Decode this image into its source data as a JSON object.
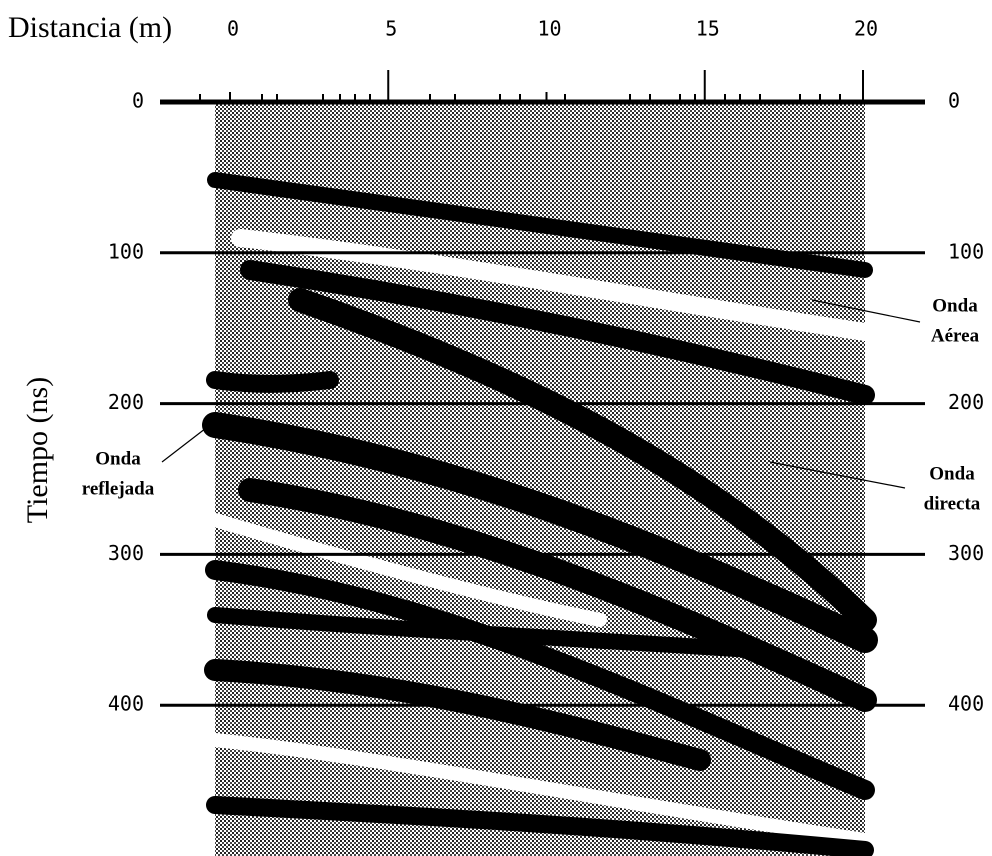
{
  "chart_data": {
    "type": "radargram",
    "x_label": "Distancia (m)",
    "y_label": "Tiempo (ns)",
    "xlim": [
      0,
      20
    ],
    "xticks": [
      0,
      5,
      10,
      15,
      20
    ],
    "ylim": [
      0,
      500
    ],
    "yticks": [
      0,
      100,
      200,
      300,
      400
    ],
    "annotations": [
      {
        "lines": [
          "Onda",
          "Aérea"
        ]
      },
      {
        "lines": [
          "Onda",
          "directa"
        ]
      },
      {
        "lines": [
          "Onda",
          "reflejada"
        ]
      }
    ]
  }
}
